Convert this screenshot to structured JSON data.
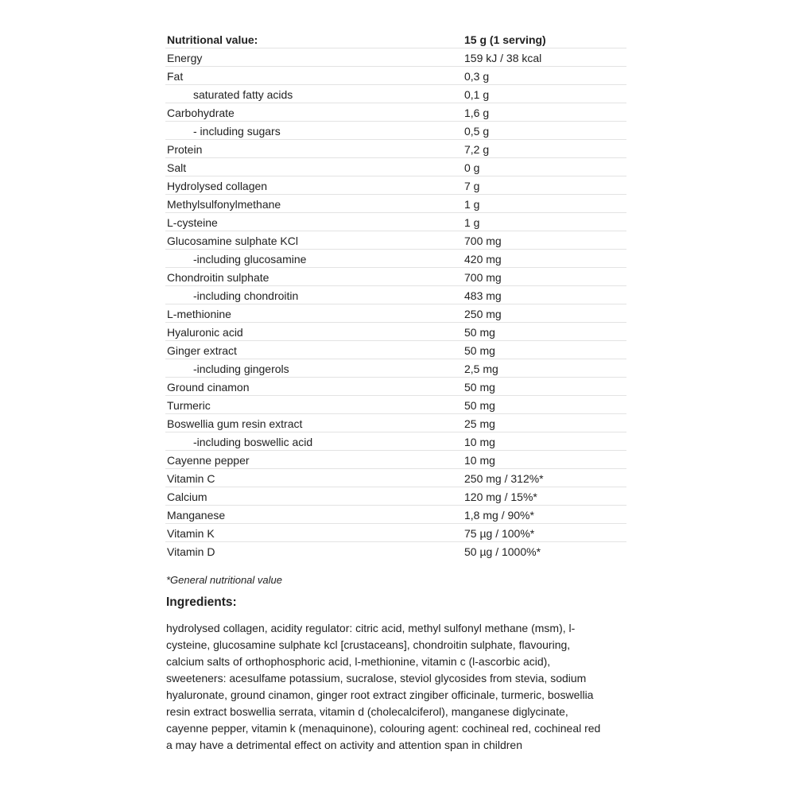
{
  "table": {
    "header": {
      "name": "Nutritional value:",
      "value": "15 g (1 serving)"
    },
    "rows": [
      {
        "name": "Energy",
        "value": "159 kJ / 38 kcal",
        "indent": false
      },
      {
        "name": "Fat",
        "value": "0,3 g",
        "indent": false
      },
      {
        "name": "saturated fatty acids",
        "value": "0,1 g",
        "indent": true
      },
      {
        "name": "Carbohydrate",
        "value": "1,6 g",
        "indent": false
      },
      {
        "name": "- including sugars",
        "value": "0,5 g",
        "indent": true
      },
      {
        "name": "Protein",
        "value": "7,2 g",
        "indent": false
      },
      {
        "name": "Salt",
        "value": "0 g",
        "indent": false
      },
      {
        "name": "Hydrolysed collagen",
        "value": "7 g",
        "indent": false
      },
      {
        "name": "Methylsulfonylmethane",
        "value": "1 g",
        "indent": false
      },
      {
        "name": "L-cysteine",
        "value": "1 g",
        "indent": false
      },
      {
        "name": "Glucosamine sulphate KCl",
        "value": "700 mg",
        "indent": false
      },
      {
        "name": "-including glucosamine",
        "value": "420 mg",
        "indent": true
      },
      {
        "name": "Chondroitin sulphate",
        "value": "700 mg",
        "indent": false
      },
      {
        "name": "-including chondroitin",
        "value": "483 mg",
        "indent": true
      },
      {
        "name": "L-methionine",
        "value": "250 mg",
        "indent": false
      },
      {
        "name": "Hyaluronic acid",
        "value": "50 mg",
        "indent": false
      },
      {
        "name": "Ginger extract",
        "value": "50 mg",
        "indent": false
      },
      {
        "name": "-including gingerols",
        "value": "2,5 mg",
        "indent": true
      },
      {
        "name": "Ground cinamon",
        "value": "50 mg",
        "indent": false
      },
      {
        "name": "Turmeric",
        "value": "50 mg",
        "indent": false
      },
      {
        "name": "Boswellia gum resin extract",
        "value": "25 mg",
        "indent": false
      },
      {
        "name": "-including boswellic acid",
        "value": "10 mg",
        "indent": true
      },
      {
        "name": "Cayenne pepper",
        "value": "10 mg",
        "indent": false
      },
      {
        "name": "Vitamin C",
        "value": "250 mg / 312%*",
        "indent": false
      },
      {
        "name": "Calcium",
        "value": "120 mg / 15%*",
        "indent": false
      },
      {
        "name": "Manganese",
        "value": "1,8 mg / 90%*",
        "indent": false
      },
      {
        "name": "Vitamin K",
        "value": "75 µg / 100%*",
        "indent": false
      },
      {
        "name": "Vitamin D",
        "value": "50 µg / 1000%*",
        "indent": false
      }
    ]
  },
  "footnote": "*General nutritional value",
  "ingredients": {
    "title": "Ingredients:",
    "lines": [
      "hydrolysed collagen, acidity regulator: citric acid, methyl sulfonyl methane (msm), l-",
      "cysteine, glucosamine sulphate kcl [crustaceans], chondroitin sulphate, flavouring,",
      "calcium salts of orthophosphoric acid, l-methionine, vitamin c (l-ascorbic acid),",
      "sweeteners: acesulfame potassium, sucralose, steviol glycosides from stevia, sodium",
      "hyaluronate, ground cinamon, ginger root extract zingiber officinale, turmeric, boswellia",
      "resin extract boswellia serrata, vitamin d (cholecalciferol), manganese diglycinate,",
      "cayenne pepper, vitamin k (menaquinone), colouring agent: cochineal red, cochineal red",
      "a may have a detrimental effect on activity and attention span in children"
    ]
  }
}
